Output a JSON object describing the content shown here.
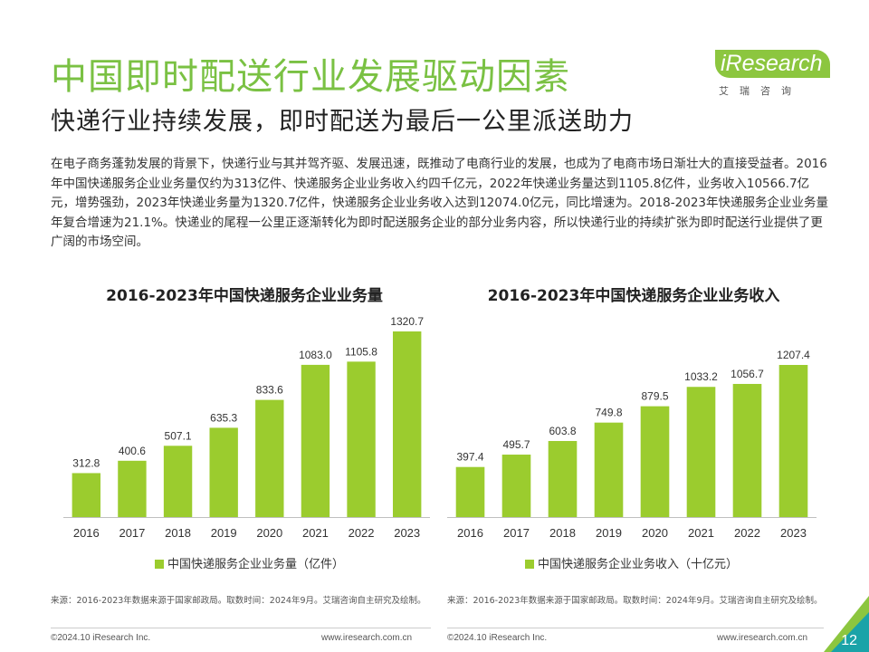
{
  "header": {
    "title": "中国即时配送行业发展驱动因素",
    "subtitle": "快递行业持续发展，即时配送为最后一公里派送助力"
  },
  "logo": {
    "word": "iResearch",
    "cn": "艾瑞咨询"
  },
  "intro": "在电子商务蓬勃发展的背景下，快递行业与其并驾齐驱、发展迅速，既推动了电商行业的发展，也成为了电商市场日渐壮大的直接受益者。2016年中国快递服务企业业务量仅约为313亿件、快递服务企业业务收入约四千亿元，2022年快递业务量达到1105.8亿件，业务收入10566.7亿元，增势强劲，2023年快递业务量为1320.7亿件，快递服务企业业务收入达到12074.0亿元，同比增速为。2018-2023年快递服务企业业务量年复合增速为21.1%。快递业的尾程一公里正逐渐转化为即时配送服务企业的部分业务内容，所以快递行业的持续扩张为即时配送行业提供了更广阔的市场空间。",
  "colors": {
    "brand_green": "#7ac143",
    "bar_green": "#9bcc2e",
    "corner_teal": "#1aa3a8"
  },
  "chart_data": [
    {
      "type": "bar",
      "title": "2016-2023年中国快递服务企业业务量",
      "categories": [
        "2016",
        "2017",
        "2018",
        "2019",
        "2020",
        "2021",
        "2022",
        "2023"
      ],
      "series": [
        {
          "name": "中国快递服务企业业务量（亿件）",
          "values": [
            312.8,
            400.6,
            507.1,
            635.3,
            833.6,
            1083.0,
            1105.8,
            1320.7
          ]
        }
      ],
      "value_labels": [
        "312.8",
        "400.6",
        "507.1",
        "635.3",
        "833.6",
        "1083.0",
        "1105.8",
        "1320.7"
      ],
      "legend": "bottom",
      "grid": false
    },
    {
      "type": "bar",
      "title": "2016-2023年中国快递服务企业业务收入",
      "categories": [
        "2016",
        "2017",
        "2018",
        "2019",
        "2020",
        "2021",
        "2022",
        "2023"
      ],
      "series": [
        {
          "name": "中国快递服务企业业务收入（十亿元）",
          "values": [
            397.4,
            495.7,
            603.8,
            749.8,
            879.5,
            1033.2,
            1056.7,
            1207.4
          ]
        }
      ],
      "value_labels": [
        "397.4",
        "495.7",
        "603.8",
        "749.8",
        "879.5",
        "1033.2",
        "1056.7",
        "1207.4"
      ],
      "legend": "bottom",
      "grid": false
    }
  ],
  "sources": {
    "left": "来源：2016-2023年数据来源于国家邮政局。取数时间：2024年9月。艾瑞咨询自主研究及绘制。",
    "right": "来源：2016-2023年数据来源于国家邮政局。取数时间：2024年9月。艾瑞咨询自主研究及绘制。"
  },
  "footer": {
    "copyright_left": "©2024.10 iResearch Inc.",
    "url_left": "www.iresearch.com.cn",
    "copyright_right": "©2024.10 iResearch Inc.",
    "url_right": "www.iresearch.com.cn"
  },
  "page_number": "12"
}
